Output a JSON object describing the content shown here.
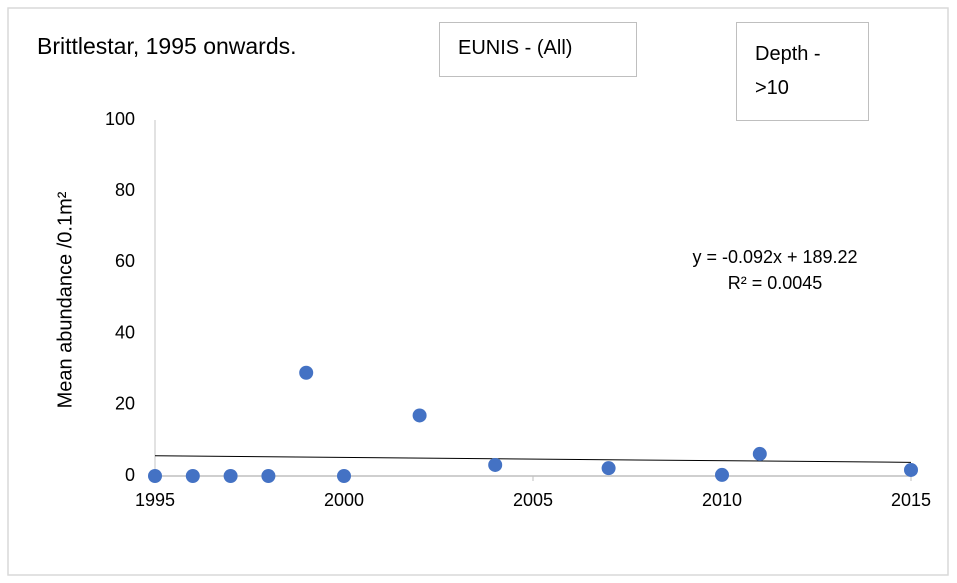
{
  "chart_data": {
    "type": "scatter",
    "title": "Brittlestar, 1995 onwards.",
    "filters": [
      "EUNIS - (All)",
      "Depth - >10"
    ],
    "y_label": "Mean abundance /0.1m²",
    "x": [
      1995,
      1996,
      1997,
      1998,
      1999,
      2000,
      2002,
      2004,
      2007,
      2010,
      2011,
      2015
    ],
    "values": [
      0,
      0,
      0,
      0,
      29,
      0,
      17,
      3.1,
      2.2,
      0.3,
      6.2,
      1.7
    ],
    "color": "#4472c4",
    "xlim": [
      1995,
      2015
    ],
    "xticks": [
      1995,
      2000,
      2005,
      2010,
      2015
    ],
    "ylim": [
      0,
      100
    ],
    "yticks": [
      0,
      20,
      40,
      60,
      80,
      100
    ],
    "grid": false,
    "trendline": {
      "slope": -0.092,
      "intercept": 189.22,
      "color": "#000000"
    },
    "annotations": [
      "y = -0.092x + 189.22",
      "R² = 0.0045"
    ]
  }
}
